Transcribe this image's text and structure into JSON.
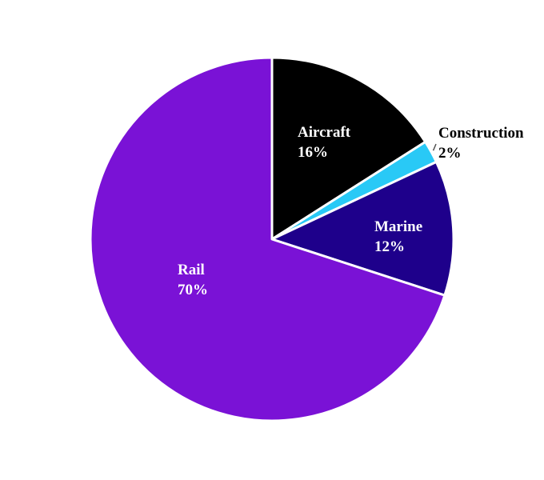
{
  "chart_data": {
    "type": "pie",
    "title": "",
    "slices": [
      {
        "label": "Aircraft",
        "value": 16,
        "percent_label": "16%",
        "color": "#000000",
        "label_color": "#ffffff"
      },
      {
        "label": "Construction",
        "value": 2,
        "percent_label": "2%",
        "color": "#29c9f6",
        "label_color": "#000000"
      },
      {
        "label": "Marine",
        "value": 12,
        "percent_label": "12%",
        "color": "#1e008b",
        "label_color": "#ffffff"
      },
      {
        "label": "Rail",
        "value": 70,
        "percent_label": "70%",
        "color": "#7a12d6",
        "label_color": "#ffffff"
      }
    ],
    "start_angle_deg": 90,
    "direction": "clockwise",
    "slice_border_color": "#ffffff",
    "legend": "none"
  }
}
